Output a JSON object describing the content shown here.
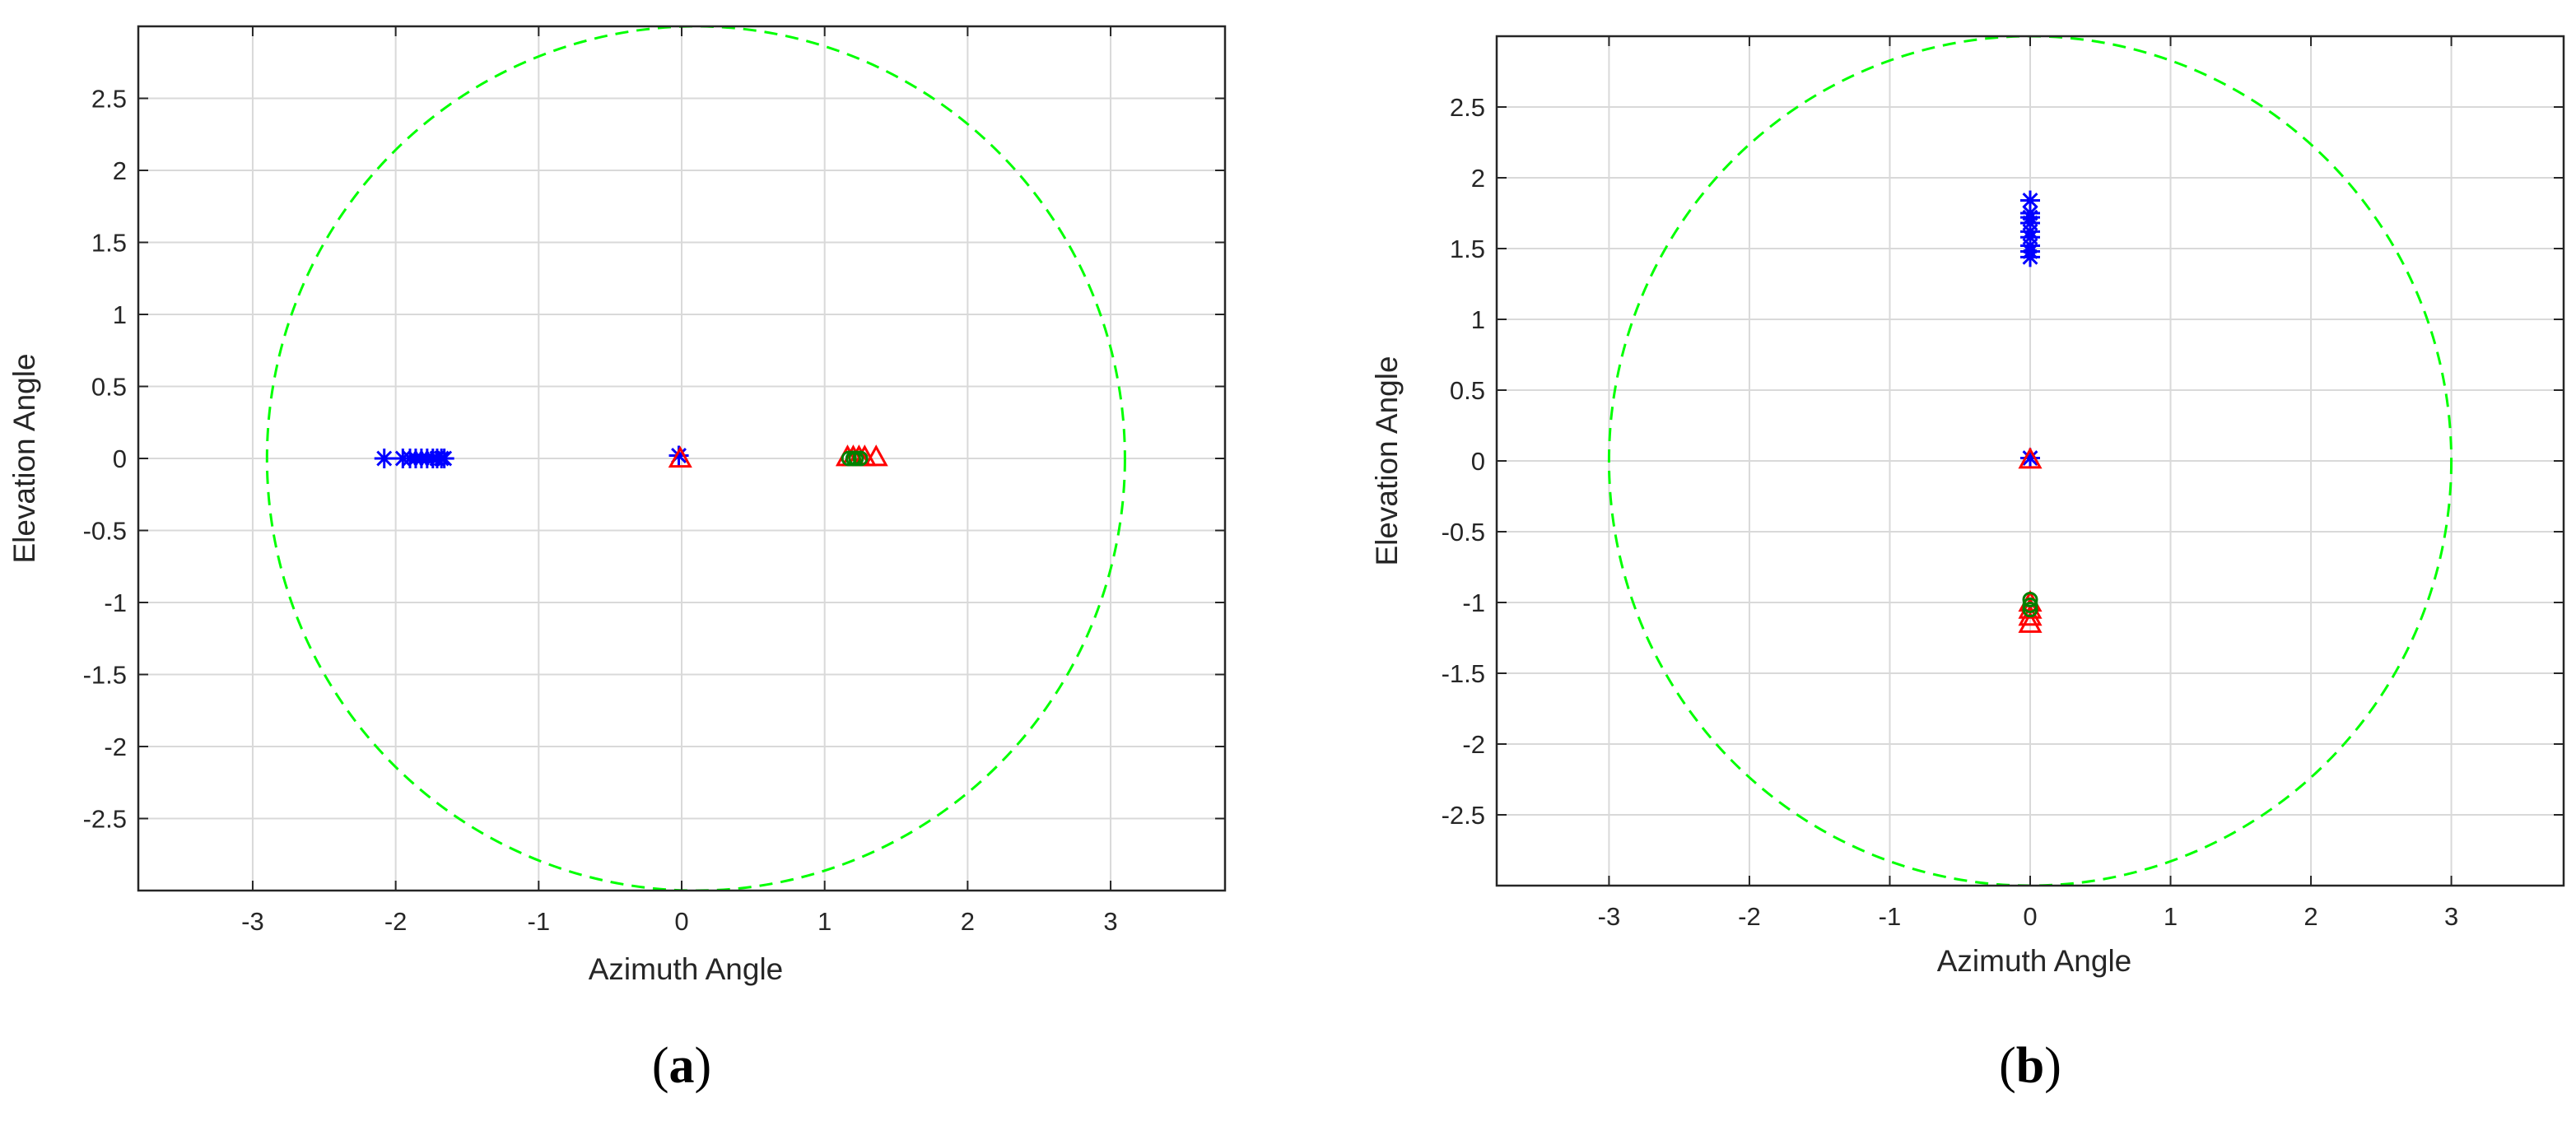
{
  "colors": {
    "grid": "#d9d9d9",
    "axes_box": "#262626",
    "circle": "#00ff00",
    "star_marker": "#0000ff",
    "triangle_marker": "#ff0000",
    "circle_marker": "#008000"
  },
  "chart_data": [
    {
      "type": "scatter",
      "panel": "a",
      "caption": "a",
      "xlabel": "Azimuth Angle",
      "ylabel": "Elevation Angle",
      "xlim": [
        -3.8,
        3.8
      ],
      "ylim": [
        -3.0,
        3.0
      ],
      "xticks": [
        -3,
        -2,
        -1,
        0,
        1,
        2,
        3
      ],
      "yticks": [
        -2.5,
        -2,
        -1.5,
        -1,
        -0.5,
        0,
        0.5,
        1,
        1.5,
        2,
        2.5
      ],
      "grid": true,
      "circle": {
        "cx": 0.1,
        "cy": 0,
        "r": 3.0,
        "style": "dashed"
      },
      "series": [
        {
          "marker": "star",
          "color": "#0000ff",
          "x": [
            -2.08,
            -1.95,
            -1.9,
            -1.86,
            -1.82,
            -1.78,
            -1.74,
            -1.71,
            -1.68,
            -1.66,
            -0.02
          ],
          "y": [
            0,
            0,
            0,
            0,
            0,
            0,
            0,
            0,
            0,
            0,
            0.02
          ]
        },
        {
          "marker": "triangle",
          "color": "#ff0000",
          "x": [
            -0.01,
            1.16,
            1.2,
            1.24,
            1.28,
            1.36
          ],
          "y": [
            0,
            0.01,
            0.01,
            0.01,
            0.01,
            0.01
          ]
        },
        {
          "marker": "circle",
          "color": "#008000",
          "x": [
            1.17,
            1.2,
            1.22,
            1.25
          ],
          "y": [
            0.0,
            0.0,
            0.0,
            0.0
          ]
        }
      ]
    },
    {
      "type": "scatter",
      "panel": "b",
      "caption": "b",
      "xlabel": "Azimuth Angle",
      "ylabel": "Elevation Angle",
      "xlim": [
        -3.8,
        3.8
      ],
      "ylim": [
        -3.0,
        3.0
      ],
      "xticks": [
        -3,
        -2,
        -1,
        0,
        1,
        2,
        3
      ],
      "yticks": [
        -2.5,
        -2,
        -1.5,
        -1,
        -0.5,
        0,
        0.5,
        1,
        1.5,
        2,
        2.5
      ],
      "grid": true,
      "circle": {
        "cx": 0,
        "cy": 0,
        "r": 3.0,
        "style": "dashed"
      },
      "series": [
        {
          "marker": "star",
          "color": "#0000ff",
          "x": [
            0,
            0,
            0,
            0,
            0,
            0,
            0,
            0,
            0,
            0
          ],
          "y": [
            1.84,
            1.75,
            1.72,
            1.68,
            1.62,
            1.58,
            1.52,
            1.48,
            1.44,
            0.02
          ]
        },
        {
          "marker": "triangle",
          "color": "#ff0000",
          "x": [
            0,
            0,
            0,
            0,
            0
          ],
          "y": [
            0.01,
            -1.0,
            -1.05,
            -1.1,
            -1.15
          ]
        },
        {
          "marker": "circle",
          "color": "#008000",
          "x": [
            0,
            0,
            0
          ],
          "y": [
            -0.98,
            -1.02,
            -1.05
          ]
        }
      ]
    }
  ]
}
